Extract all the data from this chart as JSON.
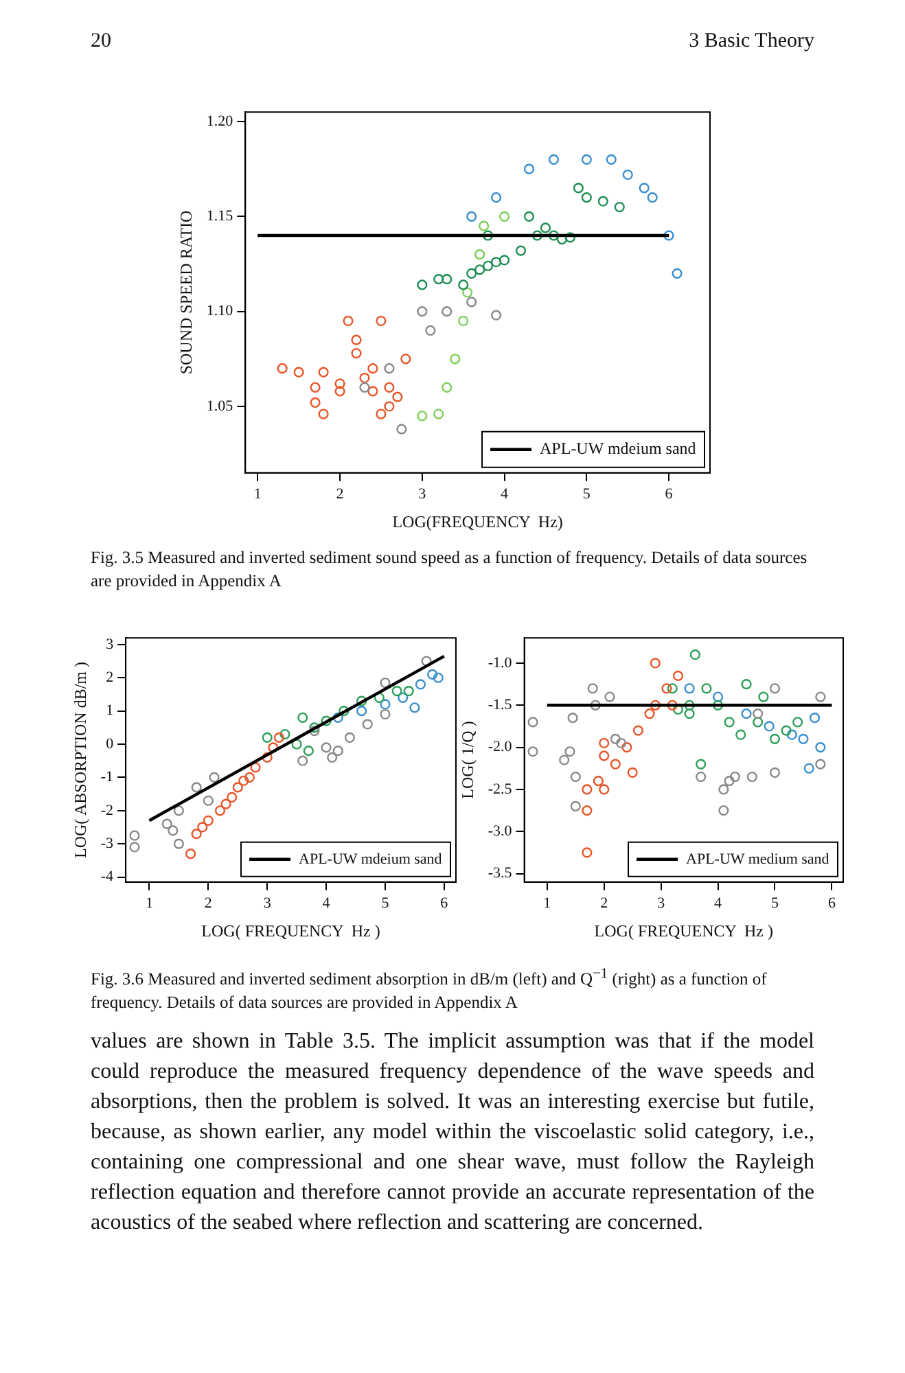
{
  "chart_data": [
    {
      "type": "scatter",
      "xlabel": "LOG(FREQUENCY  Hz)",
      "ylabel": "SOUND SPEED RATIO",
      "xlim": [
        0.85,
        6.5
      ],
      "ylim": [
        1.015,
        1.205
      ],
      "xticks": [
        1,
        2,
        3,
        4,
        5,
        6
      ],
      "yticks": [
        {
          "value": 1.05,
          "label": "1.05"
        },
        {
          "value": 1.1,
          "label": "1.10"
        },
        {
          "value": 1.15,
          "label": "1.15"
        },
        {
          "value": 1.2,
          "label": "1.20"
        }
      ],
      "grid": false,
      "legend": "bottom right",
      "marker": "circle",
      "annotations": [
        "20",
        "3   Basic Theory",
        "Fig. 3.5  Measured and inverted sediment sound speed as a function of frequency. Details of data sources are provided in Appendix A"
      ],
      "series": [
        {
          "color": "#8a8a8a",
          "x": [
            2.75,
            3.0,
            3.1,
            3.3,
            3.6,
            3.9,
            2.6,
            2.3
          ],
          "values": [
            1.038,
            1.1,
            1.09,
            1.1,
            1.105,
            1.098,
            1.07,
            1.06
          ]
        },
        {
          "color": "#e8562a",
          "x": [
            1.3,
            1.5,
            1.7,
            1.8,
            2.0,
            2.1,
            2.2,
            2.3,
            2.4,
            2.5,
            2.6,
            2.7,
            2.8,
            1.7,
            2.5,
            1.8,
            2.2,
            2.0,
            2.4,
            2.6
          ],
          "values": [
            1.07,
            1.068,
            1.06,
            1.068,
            1.058,
            1.095,
            1.085,
            1.065,
            1.07,
            1.095,
            1.06,
            1.055,
            1.075,
            1.052,
            1.046,
            1.046,
            1.078,
            1.062,
            1.058,
            1.05
          ]
        },
        {
          "color": "#1f8f55",
          "x": [
            3.0,
            3.2,
            3.3,
            3.5,
            3.6,
            3.7,
            3.8,
            3.9,
            4.0,
            4.2,
            4.4,
            4.5,
            4.6,
            4.7,
            4.8,
            5.0,
            5.2,
            5.4,
            4.3,
            3.8,
            4.9
          ],
          "values": [
            1.114,
            1.117,
            1.117,
            1.114,
            1.12,
            1.122,
            1.124,
            1.126,
            1.127,
            1.132,
            1.14,
            1.144,
            1.14,
            1.138,
            1.139,
            1.16,
            1.158,
            1.155,
            1.15,
            1.14,
            1.165
          ]
        },
        {
          "color": "#7ccf5a",
          "x": [
            3.0,
            3.2,
            3.3,
            3.4,
            3.5,
            3.55,
            3.7,
            3.75,
            4.0
          ],
          "values": [
            1.045,
            1.046,
            1.06,
            1.075,
            1.095,
            1.11,
            1.13,
            1.145,
            1.15
          ]
        },
        {
          "color": "#3a8fd0",
          "x": [
            3.6,
            3.9,
            4.3,
            4.6,
            5.0,
            5.3,
            5.5,
            5.7,
            5.8,
            6.0,
            6.1
          ],
          "values": [
            1.15,
            1.16,
            1.175,
            1.18,
            1.18,
            1.18,
            1.172,
            1.165,
            1.16,
            1.14,
            1.12
          ]
        },
        {
          "type": "line",
          "name": "APL-UW mdeium sand",
          "color": "#000000",
          "marker": "none",
          "x": [
            1,
            6
          ],
          "values": [
            1.14,
            1.14
          ]
        }
      ]
    },
    {
      "type": "scatter",
      "xlabel": "LOG( FREQUENCY  Hz )",
      "ylabel": "LOG( ABSORPTION dB/m )",
      "xlim": [
        0.6,
        6.2
      ],
      "ylim": [
        -4.15,
        3.2
      ],
      "xticks": [
        1,
        2,
        3,
        4,
        5,
        6
      ],
      "yticks": [
        -4,
        -3,
        -2,
        -1,
        0,
        1,
        2,
        3
      ],
      "grid": false,
      "legend": "bottom right",
      "marker": "circle",
      "series": [
        {
          "color": "#8a8a8a",
          "x": [
            0.75,
            0.75,
            1.3,
            1.4,
            1.5,
            1.5,
            1.8,
            2.1,
            2.0,
            3.6,
            4.0,
            4.1,
            4.2,
            4.4,
            4.7,
            5.0,
            5.0,
            5.7,
            3.8
          ],
          "values": [
            -2.75,
            -3.1,
            -2.4,
            -2.6,
            -3.0,
            -2.0,
            -1.3,
            -1.0,
            -1.7,
            -0.5,
            -0.1,
            -0.4,
            -0.2,
            0.2,
            0.6,
            0.9,
            1.85,
            2.5,
            0.4
          ]
        },
        {
          "color": "#e8562a",
          "x": [
            1.7,
            1.8,
            1.9,
            2.0,
            2.2,
            2.3,
            2.4,
            2.5,
            2.6,
            2.7,
            2.8,
            3.0,
            3.1,
            3.2
          ],
          "values": [
            -3.3,
            -2.7,
            -2.5,
            -2.3,
            -2.0,
            -1.8,
            -1.6,
            -1.3,
            -1.1,
            -1.0,
            -0.7,
            -0.4,
            -0.1,
            0.2
          ]
        },
        {
          "color": "#2ea05a",
          "x": [
            3.0,
            3.3,
            3.5,
            3.6,
            3.7,
            3.8,
            4.0,
            4.3,
            4.6,
            4.9,
            5.2,
            5.4
          ],
          "values": [
            0.2,
            0.3,
            0.0,
            0.8,
            -0.2,
            0.5,
            0.7,
            1.0,
            1.3,
            1.4,
            1.6,
            1.6
          ]
        },
        {
          "color": "#3a8fd0",
          "x": [
            4.2,
            4.6,
            5.0,
            5.3,
            5.5,
            5.6,
            5.8,
            5.9
          ],
          "values": [
            0.8,
            1.0,
            1.2,
            1.4,
            1.1,
            1.8,
            2.1,
            2.0
          ]
        },
        {
          "type": "line",
          "name": "APL-UW mdeium sand",
          "color": "#000000",
          "marker": "none",
          "x": [
            1,
            6
          ],
          "values": [
            -2.3,
            2.65
          ]
        }
      ]
    },
    {
      "type": "scatter",
      "xlabel": "LOG( FREQUENCY  Hz )",
      "ylabel": "LOG( 1/Q )",
      "xlim": [
        0.6,
        6.2
      ],
      "ylim": [
        -3.6,
        -0.7
      ],
      "xticks": [
        1,
        2,
        3,
        4,
        5,
        6
      ],
      "yticks": [
        {
          "value": -3.5,
          "label": "-3.5"
        },
        {
          "value": -3,
          "label": "-3.0"
        },
        {
          "value": -2.5,
          "label": "-2.5"
        },
        {
          "value": -2,
          "label": "-2.0"
        },
        {
          "value": -1.5,
          "label": "-1.5"
        },
        {
          "value": -1,
          "label": "-1.0"
        }
      ],
      "grid": false,
      "legend": "bottom right",
      "marker": "circle",
      "annotations": [
        "Fig. 3.6  Measured and inverted sediment absorption in dB/m (left) and Q$^{−1}$ (right) as a function of frequency. Details of data sources are provided in Appendix A",
        "values are shown in Table 3.5. The implicit assumption was that if the model could reproduce the measured frequency dependence of the wave speeds and absorptions, then the problem is solved. It was an interesting exercise but futile, because, as shown earlier, any model within the viscoelastic solid category, i.e., containing one compressional and one shear wave, must follow the Rayleigh reflection equation and therefore cannot provide an accurate representation of the acoustics of the seabed where reflection and scattering are concerned."
      ],
      "series": [
        {
          "color": "#8a8a8a",
          "x": [
            0.75,
            0.75,
            1.3,
            1.4,
            1.45,
            1.5,
            1.5,
            1.8,
            1.85,
            2.1,
            2.2,
            2.3,
            3.7,
            4.1,
            4.1,
            4.2,
            4.3,
            4.6,
            5.0,
            5.8,
            5.8,
            5.0,
            4.7
          ],
          "values": [
            -1.7,
            -2.05,
            -2.15,
            -2.05,
            -1.65,
            -2.35,
            -2.7,
            -1.3,
            -1.5,
            -1.4,
            -1.9,
            -1.95,
            -2.35,
            -2.5,
            -2.75,
            -2.4,
            -2.35,
            -2.35,
            -2.3,
            -2.2,
            -1.4,
            -1.3,
            -1.6
          ]
        },
        {
          "color": "#e8562a",
          "x": [
            1.7,
            1.7,
            1.9,
            2.0,
            2.2,
            2.4,
            2.6,
            2.8,
            2.9,
            3.1,
            3.3,
            3.2,
            2.5,
            1.7,
            2.9,
            2.0,
            2.0
          ],
          "values": [
            -2.75,
            -2.5,
            -2.4,
            -2.5,
            -2.2,
            -2.0,
            -1.8,
            -1.6,
            -1.5,
            -1.3,
            -1.15,
            -1.5,
            -2.3,
            -3.25,
            -1.0,
            -1.95,
            -2.1
          ]
        },
        {
          "color": "#2ea05a",
          "x": [
            3.2,
            3.5,
            3.6,
            3.8,
            4.0,
            4.2,
            4.4,
            4.7,
            5.0,
            5.2,
            5.4,
            3.5,
            4.5,
            4.8,
            3.3,
            3.7
          ],
          "values": [
            -1.3,
            -1.5,
            -0.9,
            -1.3,
            -1.5,
            -1.7,
            -1.85,
            -1.7,
            -1.9,
            -1.8,
            -1.7,
            -1.6,
            -1.25,
            -1.4,
            -1.55,
            -2.2
          ]
        },
        {
          "color": "#3a8fd0",
          "x": [
            3.5,
            4.0,
            4.5,
            4.9,
            5.3,
            5.5,
            5.7,
            5.6,
            5.8
          ],
          "values": [
            -1.3,
            -1.4,
            -1.6,
            -1.75,
            -1.85,
            -1.9,
            -1.65,
            -2.25,
            -2.0
          ]
        },
        {
          "type": "line",
          "name": "APL-UW medium sand",
          "color": "#000000",
          "marker": "none",
          "x": [
            1,
            6
          ],
          "values": [
            -1.5,
            -1.5
          ]
        }
      ]
    }
  ]
}
